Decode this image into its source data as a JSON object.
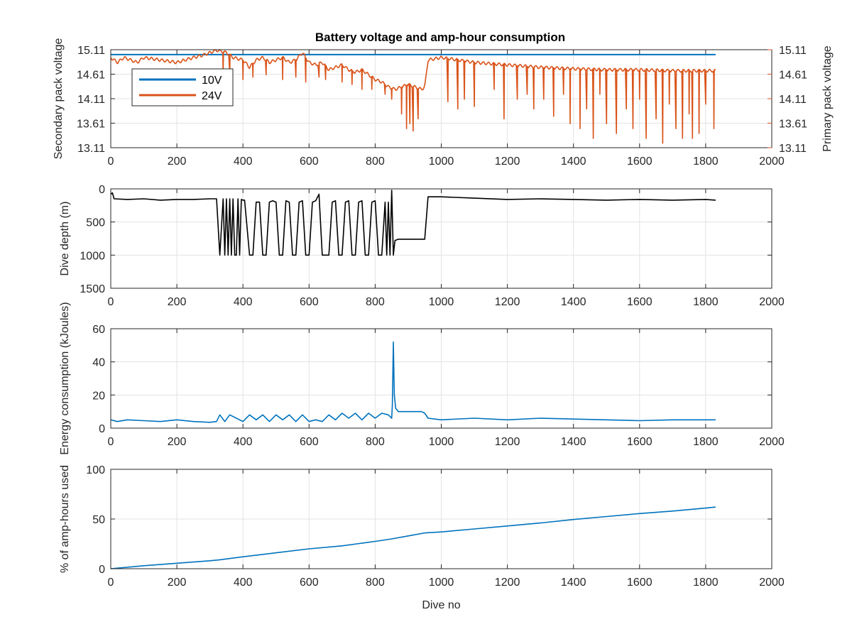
{
  "figure": {
    "title": "Battery voltage and amp-hour consumption",
    "colors": {
      "blue": "#0072BD",
      "orange": "#D95319",
      "black": "#000000",
      "axis": "#262626"
    }
  },
  "chart_data": [
    {
      "type": "line",
      "id": "voltage",
      "title": "Battery voltage and amp-hour consumption",
      "xlabel": "",
      "ylabel_left": "Secondary pack voltage",
      "ylabel_right": "Primary pack voltage",
      "xlim": [
        0,
        2000
      ],
      "ylim": [
        13.11,
        15.11
      ],
      "xticks": [
        0,
        200,
        400,
        600,
        800,
        1000,
        1200,
        1400,
        1600,
        1800,
        2000
      ],
      "yticks": [
        13.11,
        13.61,
        14.11,
        14.61,
        15.11
      ],
      "ytick_labels": [
        "13.11",
        "13.61",
        "14.11",
        "14.61",
        "15.11"
      ],
      "grid": true,
      "legend": {
        "placement": "top-left",
        "entries": [
          "10V",
          "24V"
        ]
      },
      "series": [
        {
          "name": "10V",
          "color": "#0072BD",
          "x": [
            0,
            1830
          ],
          "y": [
            15.01,
            15.01
          ]
        },
        {
          "name": "24V",
          "color": "#D95319",
          "x": [
            0,
            20,
            40,
            60,
            80,
            100,
            150,
            200,
            250,
            280,
            300,
            320,
            350,
            370,
            400,
            420,
            440,
            460,
            480,
            500,
            520,
            540,
            560,
            580,
            600,
            620,
            640,
            660,
            680,
            700,
            720,
            740,
            760,
            780,
            800,
            820,
            840,
            860,
            880,
            900,
            920,
            940,
            950,
            960,
            1000,
            1100,
            1200,
            1300,
            1400,
            1500,
            1600,
            1700,
            1800,
            1830
          ],
          "y": [
            14.95,
            14.85,
            14.95,
            14.9,
            14.85,
            14.95,
            14.9,
            14.85,
            14.95,
            15.0,
            15.05,
            15.1,
            15.05,
            14.95,
            14.9,
            14.75,
            14.9,
            14.95,
            14.85,
            14.9,
            14.95,
            14.85,
            14.9,
            15.05,
            14.85,
            14.8,
            14.85,
            14.7,
            14.75,
            14.8,
            14.7,
            14.65,
            14.7,
            14.6,
            14.5,
            14.45,
            14.35,
            14.3,
            14.35,
            14.4,
            14.35,
            14.3,
            14.35,
            14.9,
            14.95,
            14.85,
            14.8,
            14.75,
            14.72,
            14.7,
            14.7,
            14.68,
            14.68,
            14.68
          ],
          "dips": [
            [
              340,
              14.55
            ],
            [
              360,
              14.6
            ],
            [
              400,
              14.5
            ],
            [
              430,
              14.55
            ],
            [
              470,
              14.6
            ],
            [
              520,
              14.5
            ],
            [
              560,
              14.55
            ],
            [
              590,
              14.45
            ],
            [
              630,
              14.55
            ],
            [
              650,
              14.5
            ],
            [
              700,
              14.45
            ],
            [
              730,
              14.4
            ],
            [
              760,
              14.3
            ],
            [
              790,
              14.3
            ],
            [
              830,
              14.2
            ],
            [
              850,
              14.1
            ],
            [
              880,
              13.8
            ],
            [
              895,
              13.5
            ],
            [
              905,
              13.6
            ],
            [
              915,
              13.45
            ],
            [
              930,
              13.7
            ],
            [
              1020,
              14.05
            ],
            [
              1050,
              13.9
            ],
            [
              1070,
              14.1
            ],
            [
              1100,
              13.95
            ],
            [
              1160,
              14.3
            ],
            [
              1190,
              13.7
            ],
            [
              1230,
              14.1
            ],
            [
              1260,
              14.2
            ],
            [
              1280,
              13.9
            ],
            [
              1310,
              14.1
            ],
            [
              1340,
              13.75
            ],
            [
              1370,
              14.2
            ],
            [
              1390,
              13.6
            ],
            [
              1420,
              13.5
            ],
            [
              1440,
              13.9
            ],
            [
              1460,
              13.3
            ],
            [
              1480,
              14.2
            ],
            [
              1500,
              13.6
            ],
            [
              1530,
              13.4
            ],
            [
              1560,
              13.9
            ],
            [
              1580,
              13.5
            ],
            [
              1600,
              14.1
            ],
            [
              1620,
              13.3
            ],
            [
              1650,
              13.7
            ],
            [
              1670,
              13.2
            ],
            [
              1690,
              14.0
            ],
            [
              1710,
              13.5
            ],
            [
              1730,
              13.3
            ],
            [
              1750,
              13.8
            ],
            [
              1760,
              13.3
            ],
            [
              1780,
              13.4
            ],
            [
              1800,
              14.0
            ],
            [
              1825,
              13.5
            ]
          ]
        }
      ]
    },
    {
      "type": "line",
      "id": "depth",
      "xlabel": "",
      "ylabel": "Dive depth (m)",
      "xlim": [
        0,
        2000
      ],
      "ylim": [
        0,
        1500
      ],
      "y_reversed": true,
      "xticks": [
        0,
        200,
        400,
        600,
        800,
        1000,
        1200,
        1400,
        1600,
        1800,
        2000
      ],
      "yticks": [
        0,
        500,
        1000,
        1500
      ],
      "grid": true,
      "series": [
        {
          "color": "#000000",
          "x": [
            0,
            5,
            10,
            50,
            100,
            150,
            200,
            250,
            300,
            320,
            330,
            340,
            345,
            350,
            355,
            360,
            365,
            370,
            375,
            380,
            385,
            390,
            395,
            400,
            405,
            420,
            430,
            440,
            450,
            460,
            470,
            480,
            490,
            500,
            510,
            520,
            530,
            540,
            550,
            560,
            570,
            580,
            590,
            600,
            610,
            620,
            630,
            640,
            650,
            660,
            670,
            680,
            690,
            700,
            710,
            720,
            730,
            740,
            750,
            760,
            770,
            780,
            790,
            800,
            810,
            820,
            830,
            835,
            840,
            845,
            850,
            855,
            860,
            870,
            900,
            930,
            950,
            960,
            1000,
            1100,
            1200,
            1300,
            1400,
            1500,
            1600,
            1700,
            1800,
            1830
          ],
          "y": [
            80,
            60,
            150,
            160,
            150,
            170,
            160,
            160,
            150,
            150,
            1000,
            150,
            1000,
            150,
            1000,
            150,
            1000,
            150,
            1000,
            1000,
            150,
            1000,
            160,
            170,
            170,
            1000,
            1000,
            200,
            200,
            1000,
            1000,
            200,
            180,
            200,
            1000,
            1000,
            180,
            200,
            1000,
            1000,
            200,
            180,
            1000,
            1000,
            200,
            180,
            80,
            1000,
            1000,
            1000,
            200,
            180,
            1000,
            1000,
            200,
            180,
            1000,
            1000,
            200,
            180,
            1000,
            1000,
            200,
            180,
            1000,
            1000,
            200,
            1000,
            200,
            1000,
            20,
            1000,
            780,
            760,
            760,
            760,
            760,
            120,
            120,
            140,
            160,
            150,
            160,
            170,
            160,
            170,
            160,
            170
          ]
        }
      ]
    },
    {
      "type": "line",
      "id": "energy",
      "xlabel": "",
      "ylabel": "Energy consumption (kJoules)",
      "xlim": [
        0,
        2000
      ],
      "ylim": [
        0,
        60
      ],
      "xticks": [
        0,
        200,
        400,
        600,
        800,
        1000,
        1200,
        1400,
        1600,
        1800,
        2000
      ],
      "yticks": [
        0,
        20,
        40,
        60
      ],
      "grid": true,
      "series": [
        {
          "color": "#0072BD",
          "x": [
            0,
            20,
            50,
            100,
            150,
            200,
            250,
            300,
            320,
            330,
            345,
            360,
            380,
            400,
            420,
            440,
            460,
            480,
            500,
            520,
            540,
            560,
            580,
            600,
            620,
            640,
            660,
            680,
            700,
            720,
            740,
            760,
            780,
            800,
            820,
            840,
            850,
            852,
            855,
            858,
            862,
            870,
            900,
            940,
            950,
            960,
            1000,
            1100,
            1200,
            1300,
            1400,
            1500,
            1600,
            1700,
            1800,
            1830
          ],
          "y": [
            5,
            4,
            5,
            4.5,
            4,
            5,
            4,
            3.5,
            4,
            8,
            4,
            8,
            6,
            4,
            8,
            5,
            8,
            4,
            8,
            5,
            8,
            4,
            8,
            4,
            5,
            4,
            8,
            5,
            9,
            6,
            9,
            5,
            9,
            6,
            9,
            8,
            6,
            14,
            52,
            20,
            12,
            10,
            10,
            10,
            9,
            6,
            5,
            6,
            5,
            6,
            5.5,
            5,
            4.5,
            5,
            5,
            5
          ]
        }
      ]
    },
    {
      "type": "line",
      "id": "amphours",
      "xlabel": "Dive no",
      "ylabel": "% of amp-hours used",
      "xlim": [
        0,
        2000
      ],
      "ylim": [
        0,
        100
      ],
      "xticks": [
        0,
        200,
        400,
        600,
        800,
        1000,
        1200,
        1400,
        1600,
        1800,
        2000
      ],
      "yticks": [
        0,
        50,
        100
      ],
      "grid": true,
      "series": [
        {
          "color": "#0072BD",
          "x": [
            0,
            100,
            200,
            300,
            330,
            400,
            500,
            600,
            700,
            800,
            850,
            900,
            950,
            1000,
            1100,
            1200,
            1300,
            1400,
            1500,
            1600,
            1700,
            1800,
            1830
          ],
          "y": [
            0,
            3,
            5.5,
            8,
            9,
            12,
            16,
            20,
            23,
            27.5,
            30,
            33,
            36,
            37,
            40,
            43,
            46,
            49.5,
            52.5,
            55.5,
            58,
            61,
            62
          ]
        }
      ]
    }
  ]
}
